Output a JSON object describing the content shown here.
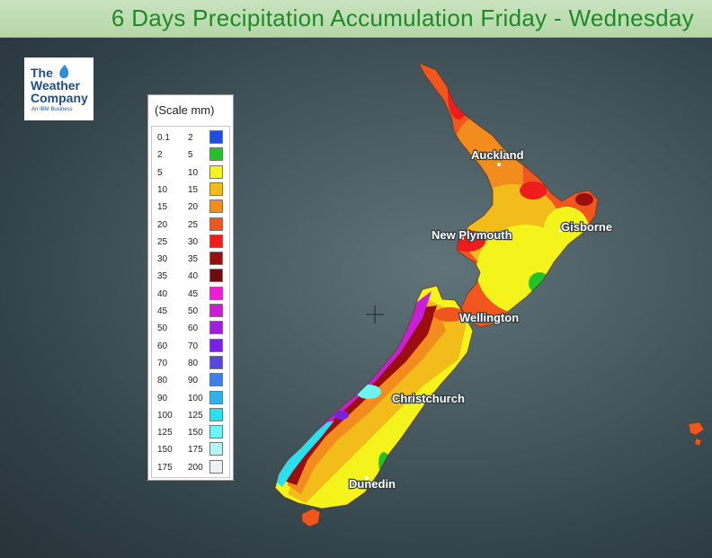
{
  "title": "6 Days Precipitation Accumulation Friday - Wednesday",
  "logo": {
    "line1": "The",
    "line2": "Weather",
    "line3": "Company",
    "tagline": "An IBM Business",
    "color": "#1b4f8a"
  },
  "legend": {
    "title": "(Scale mm)",
    "rows": [
      {
        "lo": "0.1",
        "hi": "2",
        "color": "#1f4fe0"
      },
      {
        "lo": "2",
        "hi": "5",
        "color": "#22c22a"
      },
      {
        "lo": "5",
        "hi": "10",
        "color": "#f4f41c"
      },
      {
        "lo": "10",
        "hi": "15",
        "color": "#f2bd1b"
      },
      {
        "lo": "15",
        "hi": "20",
        "color": "#f28c1c"
      },
      {
        "lo": "20",
        "hi": "25",
        "color": "#f0561e"
      },
      {
        "lo": "25",
        "hi": "30",
        "color": "#ef1c1c"
      },
      {
        "lo": "30",
        "hi": "35",
        "color": "#9a0e0e"
      },
      {
        "lo": "35",
        "hi": "40",
        "color": "#6b0b12"
      },
      {
        "lo": "40",
        "hi": "45",
        "color": "#ee1ed6"
      },
      {
        "lo": "45",
        "hi": "50",
        "color": "#c81ed6"
      },
      {
        "lo": "50",
        "hi": "60",
        "color": "#a31ed9"
      },
      {
        "lo": "60",
        "hi": "70",
        "color": "#7a1fe3"
      },
      {
        "lo": "70",
        "hi": "80",
        "color": "#5a45e0"
      },
      {
        "lo": "80",
        "hi": "90",
        "color": "#3f7fe8"
      },
      {
        "lo": "90",
        "hi": "100",
        "color": "#2fb1ee"
      },
      {
        "lo": "100",
        "hi": "125",
        "color": "#2ae0ee"
      },
      {
        "lo": "125",
        "hi": "150",
        "color": "#6ef3f5"
      },
      {
        "lo": "150",
        "hi": "175",
        "color": "#b4f6f6"
      },
      {
        "lo": "175",
        "hi": "200",
        "color": "#eef0f6"
      }
    ]
  },
  "cities": [
    {
      "name": "Auckland"
    },
    {
      "name": "Gisborne"
    },
    {
      "name": "New Plymouth"
    },
    {
      "name": "Wellington"
    },
    {
      "name": "Christchurch"
    },
    {
      "name": "Dunedin"
    }
  ]
}
